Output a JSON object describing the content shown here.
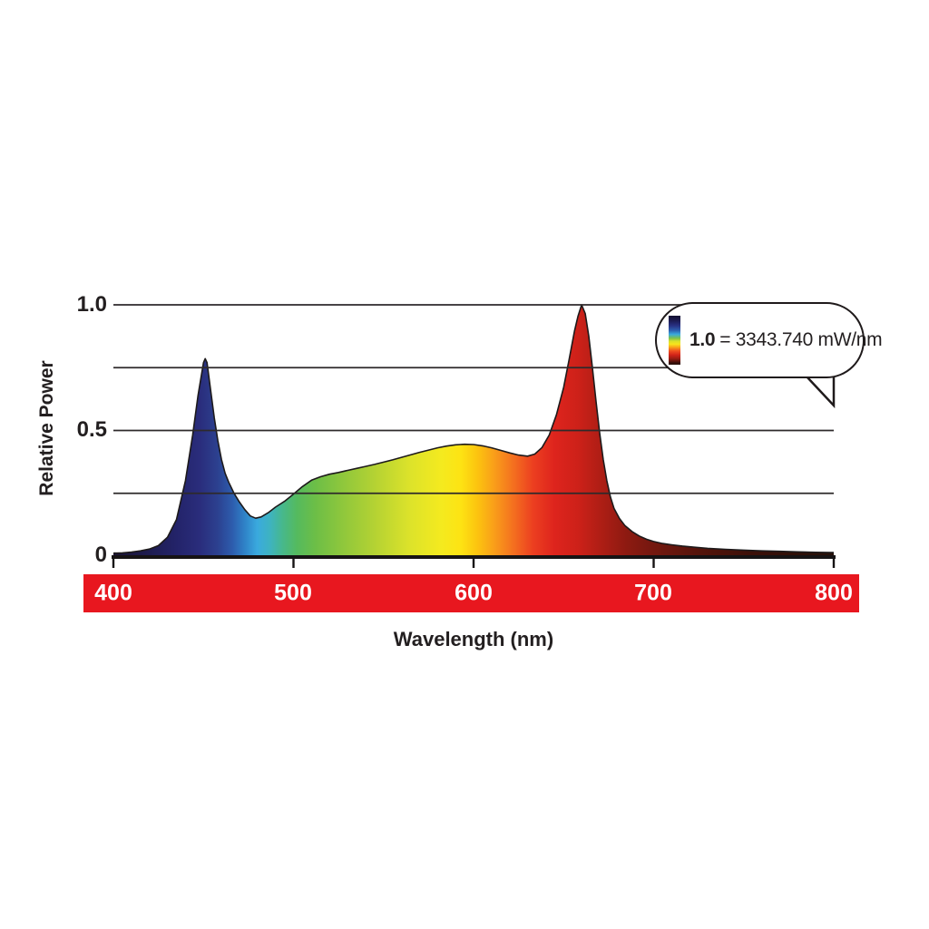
{
  "colors": {
    "background": "#ffffff",
    "text": "#231f20",
    "grid": "#2e2a2b",
    "curve_outline": "#1d1a1b",
    "baseline": "#161314",
    "x_band": "#e8171f",
    "x_tick_text": "#ffffff",
    "callout_border": "#1f1a1b",
    "callout_fill": "#ffffff"
  },
  "axes": {
    "y_label": "Relative Power",
    "y_tick_labels": [
      "1.0",
      "0.5",
      "0"
    ],
    "x_label": "Wavelength (nm)",
    "x_tick_labels": [
      "400",
      "500",
      "600",
      "700",
      "800"
    ]
  },
  "callout": {
    "bold": "1.0",
    "rest": "= 3343.740 mW/nm",
    "icon": "spectrum-gradient-bar"
  },
  "chart_data": {
    "type": "area",
    "title": "",
    "xlabel": "Wavelength (nm)",
    "ylabel": "Relative Power",
    "xlim": [
      400,
      800
    ],
    "ylim": [
      0,
      1.0
    ],
    "x_ticks": [
      400,
      500,
      600,
      700,
      800
    ],
    "y_ticks": [
      0,
      0.5,
      1.0
    ],
    "gridlines_y": [
      0.25,
      0.5,
      0.75,
      1.0
    ],
    "grid": "horizontal lines on top of fill",
    "legend_position": "none",
    "annotation": "1.0 = 3343.740 mW/nm",
    "peaks": [
      {
        "wavelength": 451,
        "value": 0.786
      },
      {
        "wavelength": 660,
        "value": 1.0
      }
    ],
    "x": [
      400,
      405,
      410,
      415,
      420,
      425,
      430,
      435,
      440,
      444,
      447,
      450,
      451,
      452,
      454,
      456,
      458,
      460,
      462,
      464,
      467,
      470,
      473,
      476,
      479,
      482,
      486,
      490,
      495,
      500,
      505,
      510,
      515,
      520,
      525,
      530,
      535,
      540,
      545,
      550,
      555,
      560,
      565,
      570,
      575,
      580,
      585,
      590,
      595,
      600,
      605,
      610,
      615,
      620,
      625,
      630,
      634,
      638,
      642,
      646,
      650,
      653,
      656,
      658,
      660,
      662,
      664,
      666,
      668,
      670,
      672,
      674,
      676,
      678,
      681,
      684,
      688,
      692,
      696,
      700,
      705,
      710,
      716,
      722,
      730,
      740,
      750,
      760,
      770,
      780,
      790,
      800
    ],
    "values": [
      0.012,
      0.013,
      0.016,
      0.021,
      0.028,
      0.042,
      0.075,
      0.145,
      0.3,
      0.48,
      0.64,
      0.77,
      0.786,
      0.77,
      0.66,
      0.55,
      0.46,
      0.385,
      0.33,
      0.295,
      0.25,
      0.215,
      0.185,
      0.16,
      0.151,
      0.156,
      0.173,
      0.195,
      0.218,
      0.247,
      0.277,
      0.302,
      0.316,
      0.326,
      0.333,
      0.341,
      0.349,
      0.357,
      0.365,
      0.374,
      0.383,
      0.393,
      0.403,
      0.413,
      0.422,
      0.431,
      0.438,
      0.443,
      0.445,
      0.444,
      0.439,
      0.431,
      0.421,
      0.411,
      0.402,
      0.398,
      0.406,
      0.432,
      0.482,
      0.562,
      0.672,
      0.78,
      0.895,
      0.955,
      1.0,
      0.965,
      0.875,
      0.75,
      0.615,
      0.49,
      0.385,
      0.3,
      0.235,
      0.19,
      0.15,
      0.122,
      0.098,
      0.08,
      0.067,
      0.058,
      0.05,
      0.045,
      0.04,
      0.036,
      0.031,
      0.027,
      0.024,
      0.021,
      0.019,
      0.017,
      0.015,
      0.014
    ],
    "gradient_stops": [
      {
        "wl": 400,
        "c": "#1b1434"
      },
      {
        "wl": 420,
        "c": "#1e1c50"
      },
      {
        "wl": 435,
        "c": "#232369"
      },
      {
        "wl": 448,
        "c": "#2a2d7c"
      },
      {
        "wl": 458,
        "c": "#2c4190"
      },
      {
        "wl": 466,
        "c": "#2d5cad"
      },
      {
        "wl": 473,
        "c": "#2f83c8"
      },
      {
        "wl": 480,
        "c": "#3aaade"
      },
      {
        "wl": 487,
        "c": "#3eb3c0"
      },
      {
        "wl": 494,
        "c": "#47b88b"
      },
      {
        "wl": 502,
        "c": "#55ba5e"
      },
      {
        "wl": 512,
        "c": "#6cbe47"
      },
      {
        "wl": 527,
        "c": "#8ec73c"
      },
      {
        "wl": 545,
        "c": "#b4d233"
      },
      {
        "wl": 565,
        "c": "#dde32a"
      },
      {
        "wl": 582,
        "c": "#f4ea1f"
      },
      {
        "wl": 593,
        "c": "#fde313"
      },
      {
        "wl": 602,
        "c": "#fcc40f"
      },
      {
        "wl": 612,
        "c": "#f99c1a"
      },
      {
        "wl": 622,
        "c": "#f4701f"
      },
      {
        "wl": 633,
        "c": "#ec3f20"
      },
      {
        "wl": 645,
        "c": "#de241d"
      },
      {
        "wl": 658,
        "c": "#cd2119"
      },
      {
        "wl": 670,
        "c": "#b01e15"
      },
      {
        "wl": 685,
        "c": "#8d1a11"
      },
      {
        "wl": 700,
        "c": "#74180f"
      },
      {
        "wl": 725,
        "c": "#55140b"
      },
      {
        "wl": 755,
        "c": "#3c1009"
      },
      {
        "wl": 800,
        "c": "#261008"
      }
    ]
  }
}
